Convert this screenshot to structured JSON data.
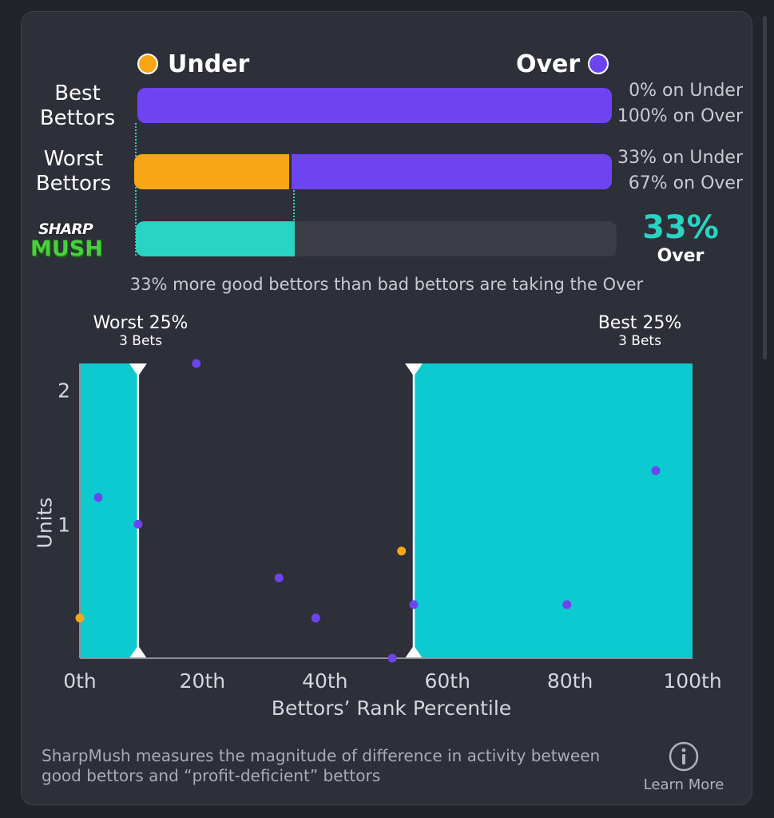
{
  "colors": {
    "under": "#f7a715",
    "over": "#6e43f0",
    "mush": "#2ad4c2",
    "quartile_fill": "#0ccad0",
    "plot_bg": "#2d3038"
  },
  "legend": {
    "under_label": "Under",
    "over_label": "Over"
  },
  "rows": {
    "best": {
      "label_line1": "Best",
      "label_line2": "Bettors",
      "under_pct": 0,
      "over_pct": 100,
      "under_text": "0% on Under",
      "over_text": "100% on Over"
    },
    "worst": {
      "label_line1": "Worst",
      "label_line2": "Bettors",
      "under_pct": 33,
      "over_pct": 67,
      "under_text": "33% on Under",
      "over_text": "67% on Over"
    },
    "sharpmush": {
      "logo_top": "SHARP",
      "logo_bottom": "MUSH",
      "pct_value": 33,
      "pct_text": "33%",
      "direction": "Over"
    }
  },
  "summary_text": "33% more good bettors than bad bettors are taking the Over",
  "quartiles": {
    "worst": {
      "title": "Worst 25%",
      "subtitle": "3 Bets"
    },
    "best": {
      "title": "Best 25%",
      "subtitle": "3 Bets"
    }
  },
  "chart_data": {
    "type": "scatter",
    "xlabel": "Bettors’ Rank Percentile",
    "ylabel": "Units",
    "x_ticks": [
      "0th",
      "20th",
      "40th",
      "60th",
      "80th",
      "100th"
    ],
    "y_ticks": [
      "1",
      "2"
    ],
    "xlim": [
      0,
      100
    ],
    "ylim": [
      0,
      2.2
    ],
    "shaded_regions": [
      {
        "name": "Worst 25%",
        "from": 0,
        "to": 9.5
      },
      {
        "name": "Best 25%",
        "from": 54.5,
        "to": 100
      }
    ],
    "markers": [
      9.5,
      54.5
    ],
    "series": [
      {
        "name": "Under",
        "points": [
          {
            "x": 0,
            "y": 0.3
          },
          {
            "x": 52.5,
            "y": 0.8
          }
        ]
      },
      {
        "name": "Over",
        "points": [
          {
            "x": 3,
            "y": 1.2
          },
          {
            "x": 9.5,
            "y": 1.0
          },
          {
            "x": 19,
            "y": 2.2
          },
          {
            "x": 32.5,
            "y": 0.6
          },
          {
            "x": 38.5,
            "y": 0.3
          },
          {
            "x": 51,
            "y": 0.0
          },
          {
            "x": 54.5,
            "y": 0.4
          },
          {
            "x": 79.5,
            "y": 0.4
          },
          {
            "x": 94,
            "y": 1.4
          }
        ]
      }
    ]
  },
  "footer": {
    "text": "SharpMush measures the magnitude of difference in activity between good bettors and “profit-deficient” bettors",
    "learn_more_label": "Learn More",
    "info_icon": "info-circle-icon"
  }
}
